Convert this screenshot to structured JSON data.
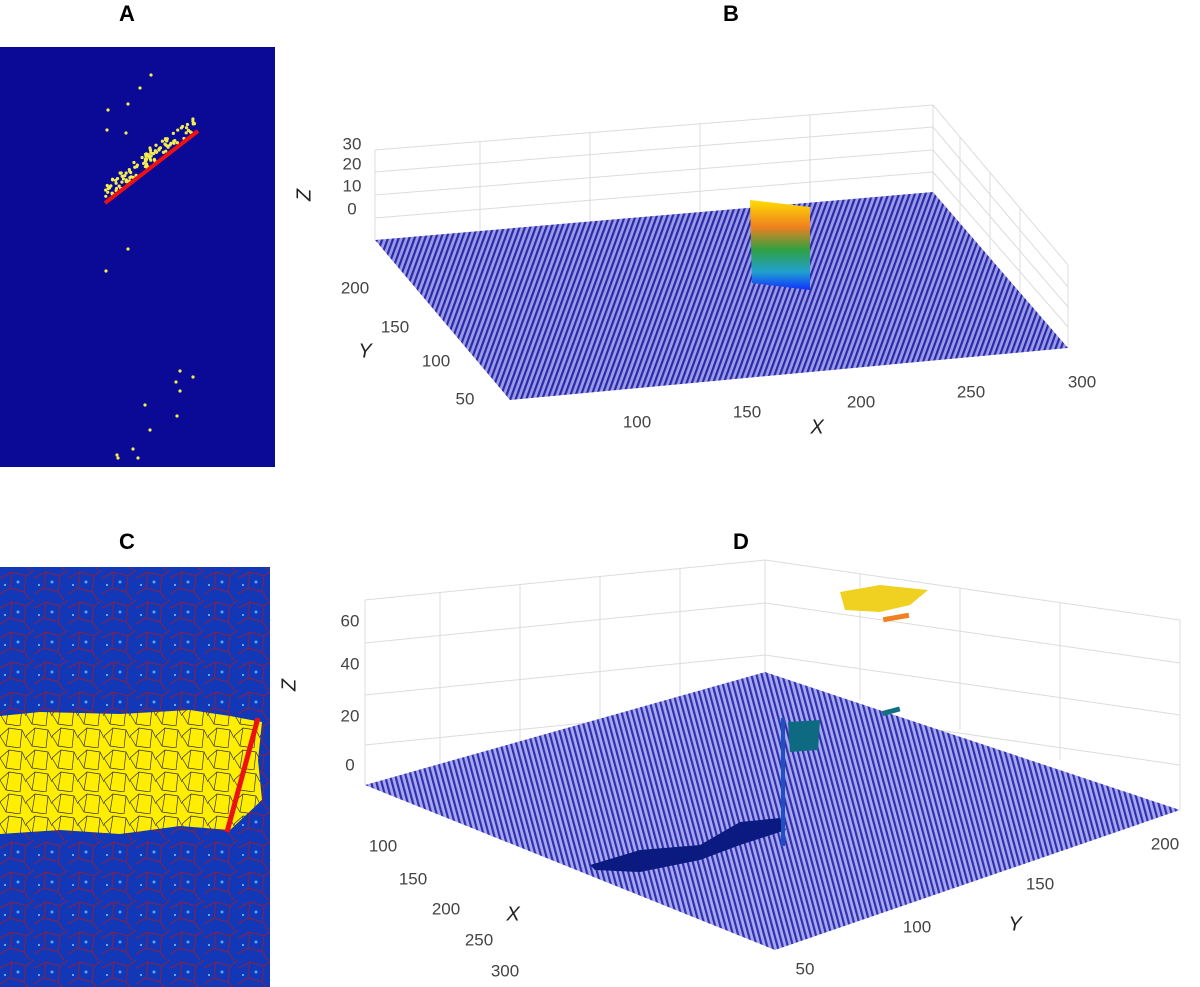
{
  "panels": [
    {
      "label": "A"
    },
    {
      "label": "B",
      "axes": {
        "x": {
          "label": "X",
          "ticks": [
            100,
            150,
            200,
            250,
            300
          ]
        },
        "y": {
          "label": "Y",
          "ticks": [
            200,
            150,
            100,
            50
          ]
        },
        "z": {
          "label": "Z",
          "ticks": [
            30,
            20,
            10,
            0
          ]
        }
      }
    },
    {
      "label": "C"
    },
    {
      "label": "D",
      "axes": {
        "x": {
          "label": "X",
          "ticks": [
            100,
            150,
            200,
            250,
            300
          ]
        },
        "y": {
          "label": "Y",
          "ticks": [
            50,
            100,
            150,
            200
          ]
        },
        "z": {
          "label": "Z",
          "ticks": [
            60,
            40,
            20,
            0
          ]
        }
      }
    }
  ]
}
